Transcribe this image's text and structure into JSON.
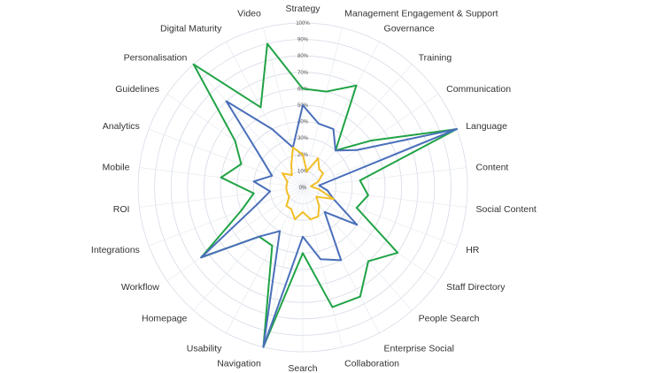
{
  "chart_data": {
    "type": "radar",
    "title": "",
    "axes": [
      "Strategy",
      "Management Engagement & Support",
      "Governance",
      "Training",
      "Communication",
      "Language",
      "Content",
      "Social Content",
      "HR",
      "Staff Directory",
      "People Search",
      "Enterprise Social",
      "Collaboration",
      "Search",
      "Navigation",
      "Usability",
      "Homepage",
      "Workflow",
      "Integrations",
      "ROI",
      "Mobile",
      "Analytics",
      "Guidelines",
      "Personalisation",
      "Digital Maturity",
      "Video"
    ],
    "rlim": [
      0,
      100
    ],
    "ticks": [
      "0%",
      "10%",
      "20%",
      "30%",
      "40%",
      "50%",
      "60%",
      "70%",
      "80%",
      "90%",
      "100%"
    ],
    "grid": true,
    "legend": "none",
    "series": [
      {
        "color": "#21a346",
        "values": [
          60,
          60,
          70,
          30,
          50,
          100,
          35,
          40,
          35,
          70,
          60,
          75,
          75,
          40,
          100,
          40,
          40,
          75,
          40,
          30,
          50,
          40,
          50,
          100,
          55,
          90
        ]
      },
      {
        "color": "#4a6fba",
        "values": [
          50,
          40,
          40,
          30,
          40,
          100,
          10,
          15,
          20,
          40,
          20,
          50,
          45,
          30,
          100,
          30,
          40,
          75,
          30,
          20,
          30,
          20,
          30,
          70,
          40,
          25
        ]
      },
      {
        "color": "#f2be27",
        "values": [
          20,
          10,
          20,
          15,
          15,
          10,
          5,
          10,
          20,
          10,
          15,
          20,
          20,
          15,
          20,
          15,
          15,
          10,
          10,
          10,
          10,
          10,
          15,
          10,
          15,
          25
        ]
      }
    ]
  }
}
